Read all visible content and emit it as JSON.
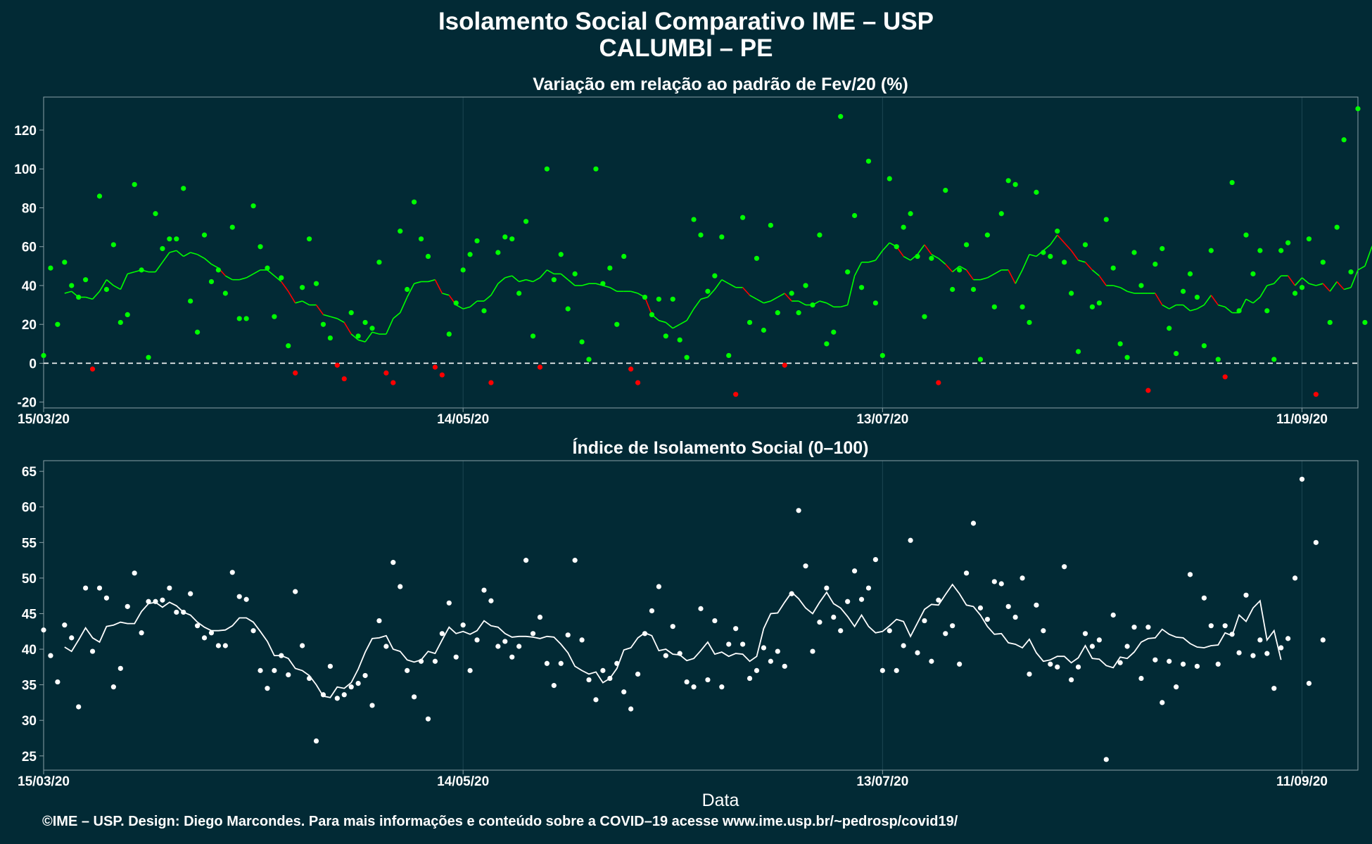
{
  "title": "Isolamento Social Comparativo IME – USP",
  "subtitle": "CALUMBI – PE",
  "footer": "©IME – USP. Design: Diego Marcondes. Para mais informações e conteúdo sobre a COVID–19 acesse www.ime.usp.br/~pedrosp/covid19/",
  "colors": {
    "background": "#022a35",
    "positive": "#00ff00",
    "negative": "#ff0000",
    "index": "#ffffff"
  },
  "chart_data": [
    {
      "type": "scatter",
      "title": "Variação em relação ao padrão de Fev/20 (%)",
      "xlabel": "",
      "ylabel": "",
      "x_start": "15/03/20",
      "x_ticks": [
        "15/03/20",
        "14/05/20",
        "13/07/20",
        "11/09/20"
      ],
      "y_ticks": [
        -20,
        0,
        20,
        40,
        60,
        80,
        100,
        120
      ],
      "ylim": [
        -23,
        137
      ],
      "reference_line": 0,
      "series": [
        {
          "values": [
            4,
            49,
            20,
            52,
            40,
            34,
            43,
            -3,
            86,
            38,
            61,
            21,
            25,
            92,
            48,
            3,
            77,
            59,
            64,
            64,
            90,
            32,
            16,
            66,
            42,
            48,
            36,
            70,
            23,
            23,
            81,
            60,
            49,
            24,
            44,
            9,
            -5,
            39,
            64,
            41,
            20,
            13,
            -1,
            -8,
            26,
            14,
            21,
            18,
            52,
            -5,
            -10,
            68,
            38,
            83,
            64,
            55,
            -2,
            -6,
            15,
            31,
            48,
            56,
            63,
            27,
            -10,
            57,
            65,
            64,
            36,
            73,
            14,
            -2,
            100,
            43,
            56,
            28,
            46,
            11,
            2,
            100,
            41,
            49,
            20,
            55,
            -3,
            -10,
            34,
            25,
            33,
            14,
            33,
            12,
            3,
            74,
            66,
            37,
            45,
            65,
            4,
            -16,
            75,
            21,
            54,
            17,
            71,
            26,
            -1,
            36,
            26,
            40,
            30,
            66,
            10,
            16,
            127,
            47,
            76,
            39,
            104,
            31,
            4,
            95,
            60,
            70,
            77,
            55,
            24,
            54,
            -10,
            89,
            38,
            48,
            61,
            38,
            2,
            66,
            29,
            77,
            94,
            92,
            29,
            21,
            88,
            57,
            55,
            68,
            52,
            36,
            6,
            61,
            29,
            31,
            74,
            49,
            10,
            3,
            57,
            40,
            -14,
            51,
            59,
            18,
            5,
            37,
            46,
            34,
            9,
            58,
            2,
            -7,
            93,
            27,
            66,
            46,
            58,
            27,
            2,
            58,
            62,
            36,
            39,
            64,
            -16,
            52,
            21,
            70,
            115,
            47,
            131,
            21
          ]
        },
        {
          "values": [
            36,
            37,
            34,
            34,
            33,
            37,
            43,
            40,
            38,
            46,
            47,
            48,
            47,
            47,
            52,
            57,
            58,
            55,
            57,
            56,
            54,
            51,
            49,
            45,
            43,
            43,
            44,
            46,
            48,
            48,
            45,
            42,
            37,
            31,
            32,
            30,
            30,
            25,
            24,
            23,
            21,
            15,
            12,
            11,
            16,
            15,
            15,
            23,
            26,
            34,
            41,
            42,
            42,
            43,
            36,
            35,
            30,
            28,
            29,
            32,
            32,
            35,
            41,
            44,
            45,
            42,
            43,
            42,
            44,
            48,
            46,
            46,
            43,
            40,
            40,
            41,
            41,
            40,
            39,
            37,
            37,
            37,
            36,
            34,
            25,
            22,
            21,
            18,
            20,
            22,
            28,
            33,
            34,
            38,
            43,
            41,
            39,
            39,
            35,
            33,
            31,
            32,
            34,
            36,
            32,
            32,
            30,
            30,
            32,
            31,
            29,
            29,
            30,
            45,
            52,
            52,
            53,
            58,
            62,
            60,
            55,
            53,
            56,
            61,
            56,
            54,
            51,
            47,
            50,
            48,
            43,
            43,
            44,
            46,
            48,
            48,
            41,
            48,
            56,
            55,
            58,
            61,
            66,
            62,
            58,
            53,
            52,
            48,
            45,
            40,
            40,
            39,
            37,
            36,
            36,
            36,
            36,
            30,
            28,
            30,
            30,
            27,
            28,
            30,
            35,
            30,
            29,
            26,
            26,
            33,
            31,
            34,
            40,
            41,
            45,
            45,
            40,
            44,
            41,
            40,
            41,
            37,
            42,
            38,
            39,
            48,
            50,
            60,
            65
          ]
        }
      ]
    },
    {
      "type": "scatter",
      "title": "Índice de Isolamento Social (0–100)",
      "xlabel": "Data",
      "ylabel": "",
      "x_start": "15/03/20",
      "x_ticks": [
        "15/03/20",
        "14/05/20",
        "13/07/20",
        "11/09/20"
      ],
      "y_ticks": [
        25,
        30,
        35,
        40,
        45,
        50,
        55,
        60,
        65
      ],
      "ylim": [
        23,
        66.5
      ],
      "series": [
        {
          "values": [
            42.7,
            39.1,
            35.4,
            43.4,
            41.6,
            31.9,
            48.6,
            39.7,
            48.6,
            47.2,
            34.7,
            37.3,
            46.0,
            50.7,
            42.3,
            46.7,
            46.7,
            46.9,
            48.6,
            45.2,
            45.2,
            47.8,
            43.3,
            41.6,
            42.3,
            40.5,
            40.5,
            50.8,
            47.4,
            47.0,
            42.6,
            37.0,
            34.5,
            37.0,
            39.1,
            36.4,
            48.1,
            40.5,
            35.9,
            27.1,
            33.6,
            37.6,
            33.1,
            33.6,
            34.7,
            35.2,
            36.3,
            32.1,
            44.0,
            40.4,
            52.2,
            48.8,
            37.0,
            33.3,
            38.3,
            30.2,
            38.3,
            42.2,
            46.5,
            38.9,
            43.4,
            37.0,
            41.3,
            48.3,
            46.8,
            40.4,
            41.1,
            38.9,
            40.4,
            52.5,
            42.2,
            44.5,
            38.0,
            34.9,
            38.0,
            42.0,
            52.5,
            41.3,
            35.7,
            32.9,
            37.0,
            35.9,
            38.0,
            34.0,
            31.6,
            36.5,
            42.2,
            45.4,
            48.8,
            39.1,
            43.2,
            39.4,
            35.4,
            34.7,
            45.7,
            35.7,
            44.0,
            34.7,
            40.7,
            42.9,
            40.7,
            35.9,
            37.0,
            40.2,
            38.3,
            39.7,
            37.6,
            47.8,
            59.5,
            51.7,
            39.7,
            43.8,
            48.6,
            44.5,
            42.6,
            46.7,
            51.0,
            47.0,
            48.6,
            52.6,
            37.0,
            42.6,
            37.0,
            40.5,
            55.3,
            39.5,
            44.0,
            38.3,
            46.9,
            42.2,
            43.3,
            37.9,
            50.7,
            57.7,
            45.8,
            44.2,
            49.5,
            49.2,
            46.0,
            44.5,
            50.0,
            36.5,
            46.2,
            42.6,
            37.9,
            37.5,
            51.6,
            35.7,
            37.5,
            42.2,
            40.4,
            41.3,
            24.5,
            44.8,
            38.1,
            40.4,
            43.1,
            35.9,
            43.1,
            38.5,
            32.5,
            38.3,
            34.7,
            37.9,
            50.5,
            37.6,
            47.2,
            43.3,
            37.9,
            43.3,
            42.1,
            39.5,
            47.6,
            39.1,
            41.3,
            39.4,
            34.5,
            40.2,
            41.5,
            50.0,
            63.9,
            35.2,
            55.0,
            41.3
          ]
        },
        {
          "values": [
            40.3,
            39.7,
            41.3,
            43.0,
            41.6,
            41.0,
            43.2,
            43.4,
            43.8,
            43.6,
            43.6,
            45.3,
            46.4,
            46.6,
            45.9,
            46.6,
            46.1,
            45.2,
            44.8,
            43.8,
            43.1,
            42.6,
            42.6,
            42.7,
            43.3,
            44.4,
            44.4,
            43.8,
            42.5,
            41.1,
            39.1,
            39.1,
            38.7,
            37.3,
            37.0,
            36.3,
            35.0,
            33.4,
            33.2,
            34.7,
            34.5,
            35.3,
            37.2,
            39.6,
            41.5,
            41.6,
            41.9,
            40.0,
            39.7,
            38.5,
            38.2,
            38.5,
            39.7,
            39.4,
            41.3,
            43.1,
            42.2,
            42.5,
            42.1,
            42.6,
            44.0,
            43.3,
            43.1,
            42.2,
            41.7,
            41.8,
            41.8,
            41.7,
            41.5,
            41.8,
            41.7,
            40.7,
            39.5,
            37.6,
            37.0,
            36.5,
            36.8,
            35.3,
            35.9,
            37.3,
            39.9,
            40.2,
            41.6,
            42.3,
            41.9,
            39.8,
            40.0,
            39.3,
            39.2,
            38.4,
            38.7,
            39.8,
            41.0,
            39.3,
            39.6,
            39.0,
            39.4,
            39.3,
            38.3,
            39.0,
            42.9,
            45.0,
            45.1,
            46.6,
            48.0,
            47.1,
            45.8,
            45.0,
            46.6,
            48.0,
            46.4,
            45.8,
            44.6,
            43.2,
            44.8,
            43.2,
            42.3,
            42.5,
            43.3,
            44.2,
            43.9,
            41.8,
            43.7,
            45.6,
            46.3,
            46.2,
            47.7,
            49.1,
            47.8,
            46.2,
            46.0,
            44.8,
            43.2,
            42.1,
            42.2,
            40.9,
            40.7,
            40.2,
            41.4,
            39.5,
            38.3,
            38.5,
            39.0,
            39.0,
            38.1,
            38.8,
            40.5,
            38.7,
            38.6,
            37.7,
            37.4,
            38.9,
            38.7,
            39.6,
            41.0,
            41.5,
            41.6,
            42.8,
            42.1,
            41.7,
            41.6,
            40.8,
            40.3,
            40.2,
            40.5,
            40.6,
            42.3,
            41.9,
            44.8,
            43.9,
            45.8,
            46.8,
            41.3,
            42.6,
            38.5
          ]
        }
      ]
    }
  ]
}
